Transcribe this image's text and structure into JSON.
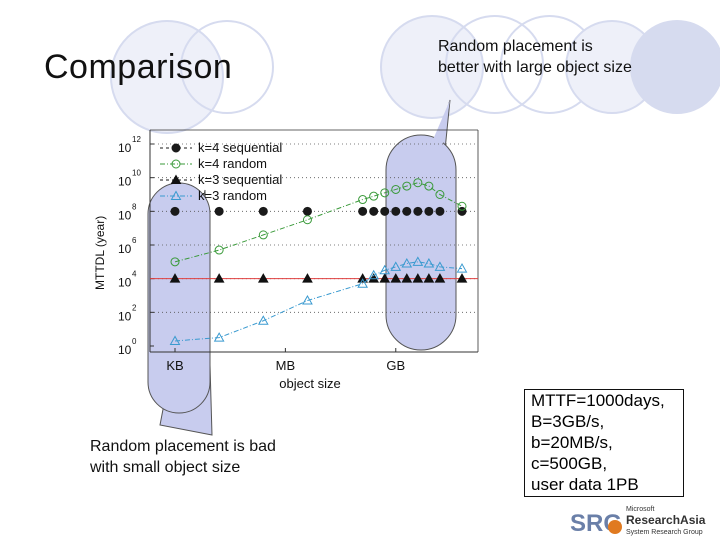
{
  "slide": {
    "title": "Comparison",
    "callout_top": "Random placement is better with large object size",
    "callout_bottom": "Random placement is bad with small object size",
    "params": [
      "MTTF=1000days,",
      "B=3GB/s,",
      "b=20MB/s,",
      "c=500GB,",
      "user data 1PB"
    ],
    "logo": {
      "small": "Microsoft",
      "main": "ResearchAsia",
      "sub": "System Research Group",
      "mark": "SRG"
    }
  },
  "chart_data": {
    "type": "line",
    "ylabel": "MTTDL (year)",
    "xlabel": "object size",
    "y_scale": "log",
    "ylim": [
      0,
      12
    ],
    "y_ticks": [
      0,
      2,
      4,
      6,
      8,
      10,
      12
    ],
    "y_tick_base": "10",
    "x_ticks": [
      {
        "label": "KB",
        "x": 0
      },
      {
        "label": "MB",
        "x": 10
      },
      {
        "label": "GB",
        "x": 20
      }
    ],
    "xlim": [
      0,
      27
    ],
    "grid": "horizontal dotted",
    "legend_position": "top-left",
    "series": [
      {
        "name": "k=4 sequential",
        "color": "#1a1a1a",
        "marker": "circle",
        "filled": true,
        "line": false,
        "x": [
          0,
          4,
          8,
          12,
          17,
          18,
          19,
          20,
          21,
          22,
          23,
          24,
          26
        ],
        "y": [
          8.0,
          8.0,
          8.0,
          8.0,
          8.0,
          8.0,
          8.0,
          8.0,
          8.0,
          8.0,
          8.0,
          8.0,
          8.0
        ]
      },
      {
        "name": "k=4 random",
        "color": "#3a9a3a",
        "marker": "circle",
        "filled": false,
        "line": true,
        "x": [
          0,
          4,
          8,
          12,
          17,
          18,
          19,
          20,
          21,
          22,
          23,
          24,
          26
        ],
        "y": [
          5.0,
          5.7,
          6.6,
          7.5,
          8.7,
          8.9,
          9.1,
          9.3,
          9.5,
          9.7,
          9.5,
          9.0,
          8.3
        ]
      },
      {
        "name": "k=3 sequential",
        "color": "#111111",
        "marker": "triangle",
        "filled": true,
        "line": false,
        "x": [
          0,
          4,
          8,
          12,
          17,
          18,
          19,
          20,
          21,
          22,
          23,
          24,
          26
        ],
        "y": [
          4.0,
          4.0,
          4.0,
          4.0,
          4.0,
          4.0,
          4.0,
          4.0,
          4.0,
          4.0,
          4.0,
          4.0,
          4.0
        ]
      },
      {
        "name": "k=3 random",
        "color": "#3a9ad0",
        "marker": "triangle",
        "filled": false,
        "line": true,
        "x": [
          0,
          4,
          8,
          12,
          17,
          18,
          19,
          20,
          21,
          22,
          23,
          24,
          26
        ],
        "y": [
          0.3,
          0.5,
          1.5,
          2.7,
          3.7,
          4.2,
          4.5,
          4.7,
          4.9,
          5.0,
          4.9,
          4.7,
          4.6
        ]
      }
    ],
    "reference_line": {
      "y": 4.0,
      "color": "#e04040"
    }
  }
}
